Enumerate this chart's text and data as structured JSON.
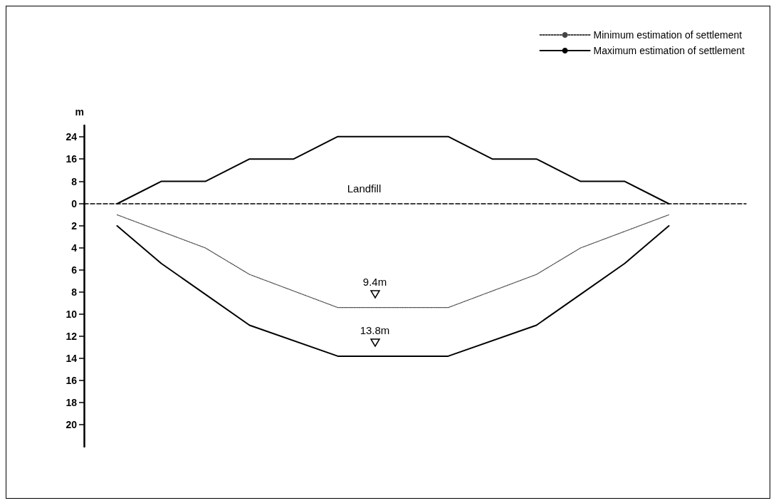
{
  "chart_data": [
    {
      "type": "line",
      "ylabel": "m",
      "categories": [
        null,
        null,
        null,
        null,
        null,
        null,
        null,
        null,
        null,
        null,
        null,
        null,
        null,
        null,
        null,
        null,
        null,
        null,
        null,
        null,
        null,
        null,
        null,
        null,
        null,
        null,
        null,
        null,
        null,
        null
      ],
      "series": [
        {
          "color": "#000000",
          "line_style": "solid",
          "values": [
            null,
            0,
            null,
            8,
            null,
            8,
            null,
            16,
            null,
            16,
            null,
            24,
            null,
            null,
            null,
            null,
            24,
            null,
            16,
            null,
            16,
            null,
            8,
            null,
            8,
            null,
            0,
            null,
            null,
            null
          ]
        }
      ],
      "ylim": [
        0,
        28
      ],
      "yticks": [
        0,
        8,
        16,
        24
      ],
      "annotations": [
        "Landfill"
      ],
      "tick_labels": "y"
    },
    {
      "type": "line",
      "categories": [
        null,
        null,
        null,
        null,
        null,
        null,
        null,
        null,
        null,
        null,
        null,
        null,
        null,
        null,
        null,
        null,
        null,
        null,
        null,
        null,
        null,
        null,
        null,
        null,
        null,
        null,
        null,
        null,
        null,
        null
      ],
      "series": [
        {
          "name": "Minimum estimation of settlement",
          "color": "#444444",
          "line_style": "dotted",
          "values": [
            null,
            1,
            null,
            null,
            null,
            4,
            null,
            6.4,
            null,
            null,
            null,
            9.4,
            null,
            null,
            null,
            null,
            9.4,
            null,
            null,
            null,
            6.4,
            null,
            4,
            null,
            null,
            null,
            1,
            null,
            null,
            null
          ]
        },
        {
          "name": "Maximum estimation of settlement",
          "color": "#000000",
          "line_style": "solid",
          "values": [
            null,
            2,
            null,
            5.4,
            null,
            8.2,
            null,
            11,
            null,
            null,
            null,
            13.8,
            null,
            null,
            null,
            null,
            13.8,
            null,
            null,
            null,
            11,
            null,
            8.2,
            null,
            5.4,
            null,
            2,
            null,
            null,
            null
          ]
        }
      ],
      "ylim": [
        22,
        0
      ],
      "yticks": [
        2,
        4,
        6,
        8,
        10,
        12,
        14,
        16,
        18,
        20
      ],
      "legend": "top right",
      "tick_labels": "y",
      "annotations": [
        {
          "text": "9.4m",
          "y": 9.4
        },
        {
          "text": "13.8m",
          "y": 13.8
        }
      ]
    }
  ]
}
